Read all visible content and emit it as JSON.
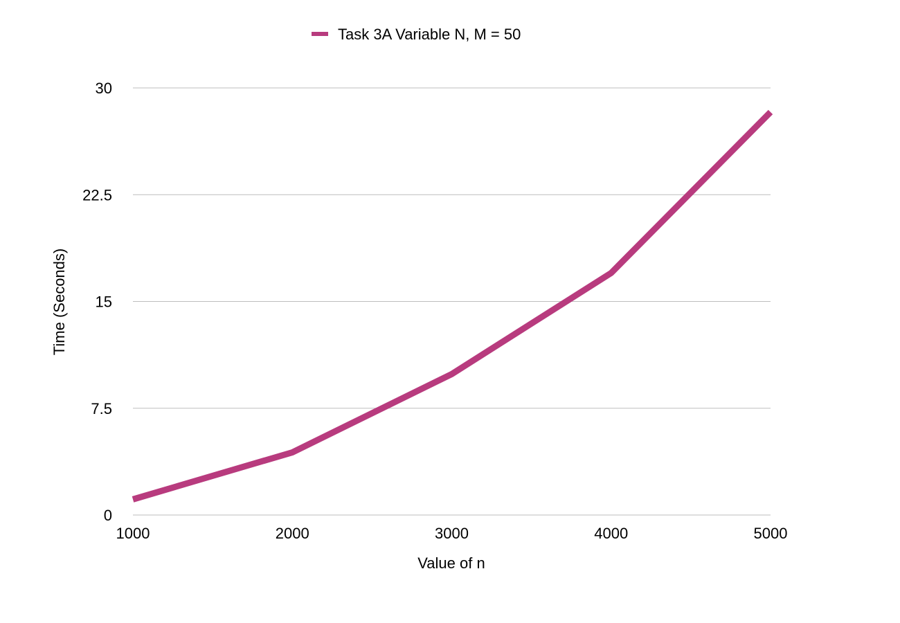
{
  "chart_data": {
    "type": "line",
    "title": "",
    "xlabel": "Value of n",
    "ylabel": "Time (Seconds)",
    "x": [
      1000,
      2000,
      3000,
      4000,
      5000
    ],
    "x_tick_labels": [
      "1000",
      "2000",
      "3000",
      "4000",
      "5000"
    ],
    "y_ticks": [
      0,
      7.5,
      15,
      22.5,
      30
    ],
    "y_tick_labels": [
      "0",
      "7.5",
      "15",
      "22.5",
      "30"
    ],
    "ylim": [
      0,
      30
    ],
    "xlim": [
      1000,
      5000
    ],
    "grid": "horizontal",
    "legend_position": "top-center",
    "series": [
      {
        "name": "Task 3A Variable N, M = 50",
        "color": "#b83b7e",
        "values": [
          1.1,
          4.4,
          9.9,
          17.0,
          28.3
        ]
      }
    ]
  }
}
